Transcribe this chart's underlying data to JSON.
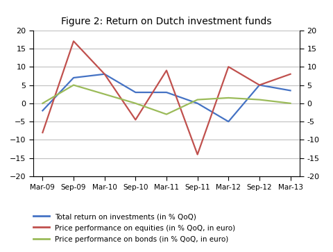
{
  "title": "Figure 2: Return on Dutch investment funds",
  "xlabels": [
    "Mar-09",
    "Sep-09",
    "Mar-10",
    "Sep-10",
    "Mar-11",
    "Sep-11",
    "Mar-12",
    "Sep-12",
    "Mar-13"
  ],
  "blue_label": "Total return on investments (in % QoQ)",
  "red_label": "Price performance on equities (in % QoQ, in euro)",
  "green_label": "Price performance on bonds (in % QoQ, in euro)",
  "blue_values": [
    -2,
    7,
    8,
    3,
    3,
    0,
    -5,
    5,
    3.5
  ],
  "red_values": [
    -8,
    17,
    8,
    -4.5,
    9,
    -14,
    10,
    5,
    8
  ],
  "green_values": [
    0,
    5,
    2.5,
    0,
    -3,
    1,
    1.5,
    1,
    0
  ],
  "ylim": [
    -20,
    20
  ],
  "yticks": [
    -20,
    -15,
    -10,
    -5,
    0,
    5,
    10,
    15,
    20
  ],
  "blue_color": "#4472C4",
  "red_color": "#C0504D",
  "green_color": "#9BBB59",
  "bg_color": "#FFFFFF",
  "grid_color": "#BFBFBF"
}
